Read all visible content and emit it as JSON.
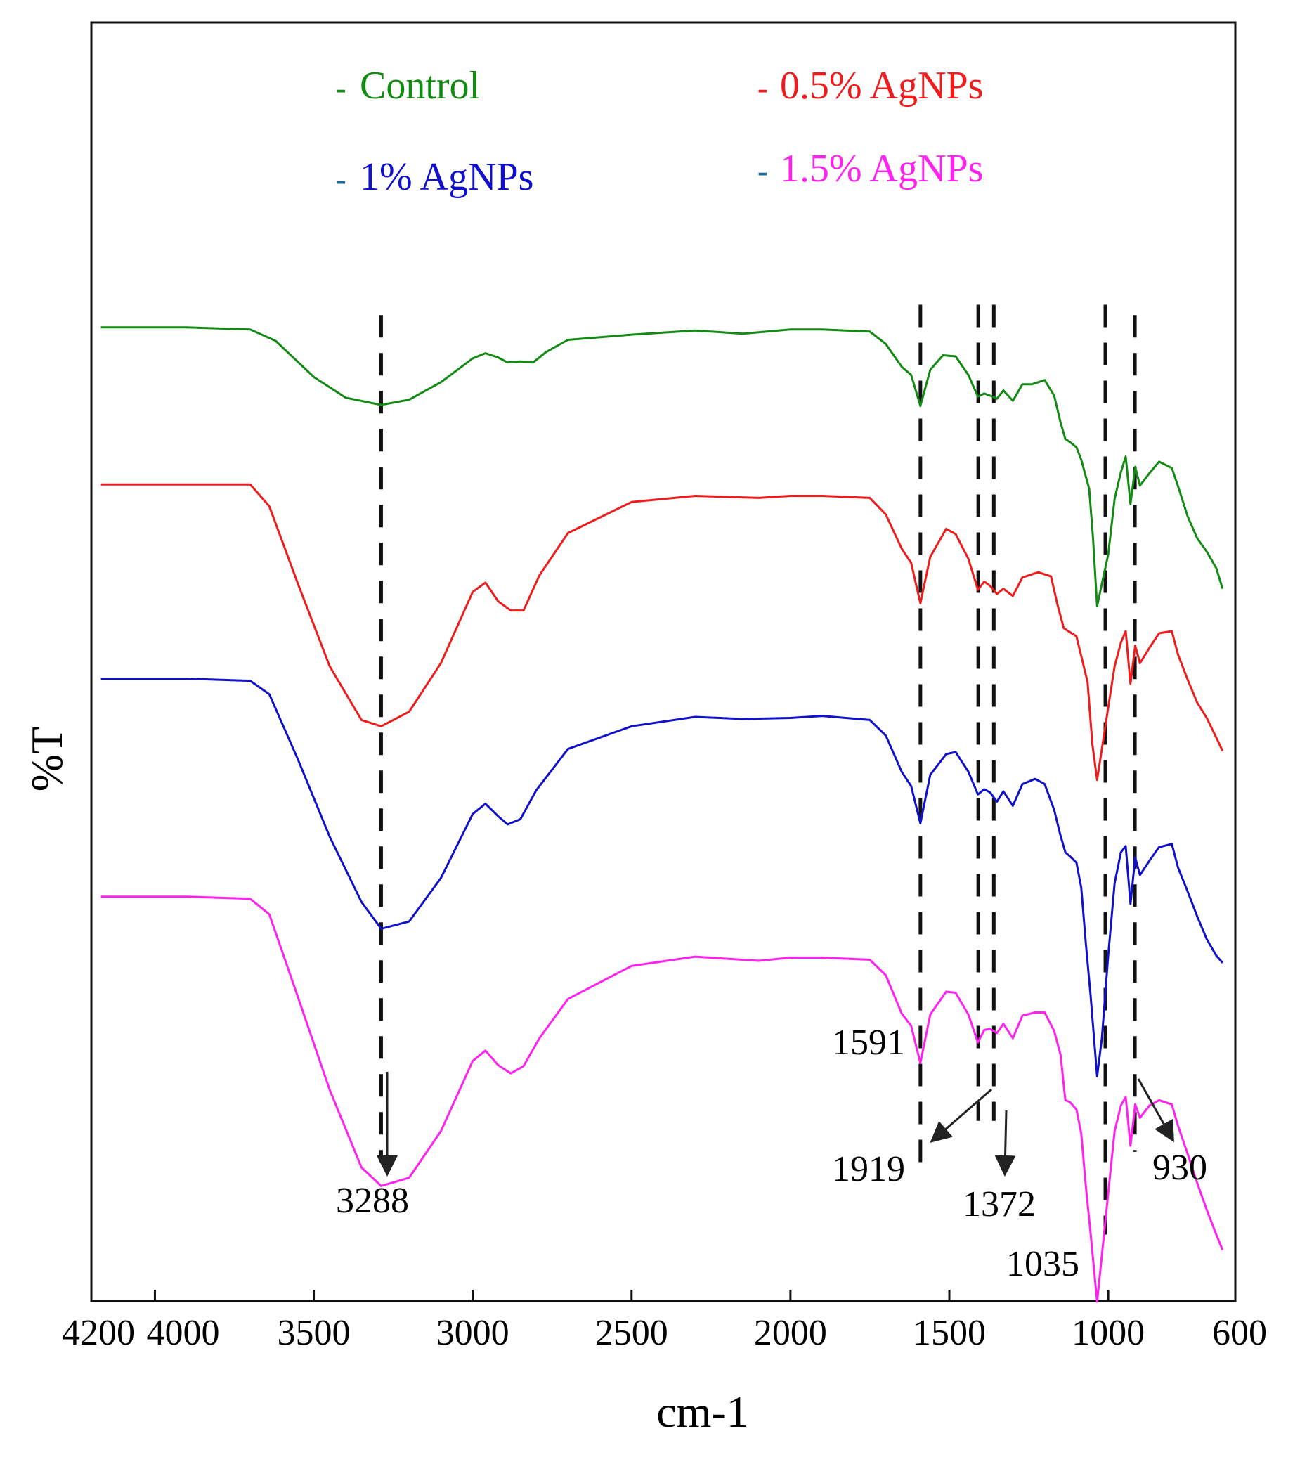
{
  "chart_data": {
    "type": "line",
    "title": "",
    "xlabel": "cm-1",
    "ylabel": "%T",
    "xlim": [
      4200,
      600
    ],
    "x_ticks": [
      {
        "value": 4200,
        "label": "4200"
      },
      {
        "value": 4000,
        "label": "4000"
      },
      {
        "value": 3500,
        "label": "3500"
      },
      {
        "value": 3000,
        "label": "3000"
      },
      {
        "value": 2500,
        "label": "2500"
      },
      {
        "value": 2000,
        "label": "2000"
      },
      {
        "value": 1500,
        "label": "1500"
      },
      {
        "value": 1000,
        "label": "1000"
      },
      {
        "value": 600,
        "label": "600"
      }
    ],
    "y_units": "relative %T (arbitrary offset, higher = more transmittance)",
    "ylim": [
      0,
      100
    ],
    "series": [
      {
        "name": "Control",
        "color": "#138a13",
        "points": [
          [
            4170,
            92.8
          ],
          [
            3900,
            92.8
          ],
          [
            3700,
            92.6
          ],
          [
            3620,
            91.5
          ],
          [
            3500,
            88
          ],
          [
            3400,
            86
          ],
          [
            3288,
            85.3
          ],
          [
            3200,
            85.8
          ],
          [
            3100,
            87.5
          ],
          [
            3000,
            89.8
          ],
          [
            2960,
            90.3
          ],
          [
            2920,
            89.9
          ],
          [
            2890,
            89.4
          ],
          [
            2850,
            89.5
          ],
          [
            2810,
            89.4
          ],
          [
            2770,
            90.4
          ],
          [
            2700,
            91.6
          ],
          [
            2500,
            92.1
          ],
          [
            2300,
            92.5
          ],
          [
            2150,
            92.2
          ],
          [
            2000,
            92.6
          ],
          [
            1900,
            92.6
          ],
          [
            1750,
            92.4
          ],
          [
            1700,
            91.2
          ],
          [
            1650,
            89
          ],
          [
            1620,
            88.2
          ],
          [
            1591,
            85.2
          ],
          [
            1560,
            88.7
          ],
          [
            1520,
            90.1
          ],
          [
            1480,
            90
          ],
          [
            1440,
            88.2
          ],
          [
            1410,
            86.1
          ],
          [
            1390,
            86.4
          ],
          [
            1372,
            86.2
          ],
          [
            1350,
            85.9
          ],
          [
            1330,
            86.7
          ],
          [
            1300,
            85.7
          ],
          [
            1270,
            87.3
          ],
          [
            1240,
            87.3
          ],
          [
            1200,
            87.7
          ],
          [
            1170,
            86.2
          ],
          [
            1150,
            83.6
          ],
          [
            1135,
            82
          ],
          [
            1120,
            81.7
          ],
          [
            1100,
            81.2
          ],
          [
            1085,
            80
          ],
          [
            1060,
            77.2
          ],
          [
            1048,
            72.5
          ],
          [
            1035,
            65.8
          ],
          [
            1020,
            68
          ],
          [
            1000,
            70.8
          ],
          [
            980,
            76.2
          ],
          [
            960,
            78.8
          ],
          [
            945,
            80.3
          ],
          [
            930,
            75.7
          ],
          [
            915,
            79.3
          ],
          [
            900,
            77.5
          ],
          [
            870,
            78.7
          ],
          [
            840,
            79.8
          ],
          [
            800,
            79.2
          ],
          [
            780,
            77.4
          ],
          [
            750,
            74.5
          ],
          [
            720,
            72.4
          ],
          [
            690,
            71.1
          ],
          [
            660,
            69.5
          ],
          [
            640,
            67.5
          ]
        ]
      },
      {
        "name": "0.5% AgNPs",
        "color": "#ee1c1c",
        "points": [
          [
            4170,
            77.6
          ],
          [
            3900,
            77.6
          ],
          [
            3700,
            77.6
          ],
          [
            3640,
            75.5
          ],
          [
            3550,
            68
          ],
          [
            3450,
            60
          ],
          [
            3350,
            54.8
          ],
          [
            3288,
            54.2
          ],
          [
            3200,
            55.6
          ],
          [
            3100,
            60.3
          ],
          [
            3000,
            67.2
          ],
          [
            2960,
            68.1
          ],
          [
            2920,
            66.3
          ],
          [
            2880,
            65.4
          ],
          [
            2840,
            65.4
          ],
          [
            2790,
            68.8
          ],
          [
            2700,
            72.9
          ],
          [
            2500,
            75.9
          ],
          [
            2300,
            76.5
          ],
          [
            2100,
            76.3
          ],
          [
            2000,
            76.5
          ],
          [
            1900,
            76.5
          ],
          [
            1750,
            76.3
          ],
          [
            1700,
            74.7
          ],
          [
            1650,
            71.4
          ],
          [
            1620,
            70
          ],
          [
            1591,
            66.1
          ],
          [
            1560,
            70.6
          ],
          [
            1510,
            73.3
          ],
          [
            1480,
            72.8
          ],
          [
            1440,
            70.4
          ],
          [
            1410,
            67.4
          ],
          [
            1390,
            68.2
          ],
          [
            1372,
            67.8
          ],
          [
            1350,
            67
          ],
          [
            1330,
            67.5
          ],
          [
            1300,
            66.8
          ],
          [
            1270,
            68.6
          ],
          [
            1220,
            69.1
          ],
          [
            1180,
            68.7
          ],
          [
            1160,
            66
          ],
          [
            1140,
            63.7
          ],
          [
            1120,
            63.3
          ],
          [
            1100,
            62.9
          ],
          [
            1085,
            61
          ],
          [
            1065,
            58.5
          ],
          [
            1050,
            52.5
          ],
          [
            1035,
            49
          ],
          [
            1020,
            52
          ],
          [
            1000,
            56
          ],
          [
            980,
            60
          ],
          [
            960,
            62.3
          ],
          [
            945,
            63.4
          ],
          [
            930,
            58.3
          ],
          [
            915,
            62
          ],
          [
            900,
            60.3
          ],
          [
            870,
            61.8
          ],
          [
            840,
            63.2
          ],
          [
            800,
            63.4
          ],
          [
            780,
            61.1
          ],
          [
            750,
            58.7
          ],
          [
            720,
            56.5
          ],
          [
            690,
            55
          ],
          [
            660,
            53.1
          ],
          [
            640,
            51.8
          ]
        ]
      },
      {
        "name": "1% AgNPs",
        "color": "#1111cc",
        "points": [
          [
            4170,
            58.8
          ],
          [
            3900,
            58.8
          ],
          [
            3700,
            58.6
          ],
          [
            3640,
            57.3
          ],
          [
            3550,
            51
          ],
          [
            3450,
            43.5
          ],
          [
            3350,
            37.2
          ],
          [
            3288,
            34.6
          ],
          [
            3200,
            35.3
          ],
          [
            3100,
            39.5
          ],
          [
            3000,
            45.7
          ],
          [
            2960,
            46.7
          ],
          [
            2920,
            45.5
          ],
          [
            2890,
            44.7
          ],
          [
            2850,
            45.2
          ],
          [
            2800,
            48
          ],
          [
            2700,
            52
          ],
          [
            2500,
            54.2
          ],
          [
            2300,
            55.1
          ],
          [
            2150,
            54.9
          ],
          [
            2000,
            55
          ],
          [
            1900,
            55.2
          ],
          [
            1750,
            54.8
          ],
          [
            1700,
            53.3
          ],
          [
            1650,
            49.8
          ],
          [
            1620,
            48.4
          ],
          [
            1591,
            44.8
          ],
          [
            1560,
            49.5
          ],
          [
            1510,
            51.5
          ],
          [
            1480,
            51.7
          ],
          [
            1440,
            49.8
          ],
          [
            1410,
            47.6
          ],
          [
            1390,
            48.1
          ],
          [
            1372,
            47.8
          ],
          [
            1350,
            46.9
          ],
          [
            1330,
            47.9
          ],
          [
            1300,
            46.5
          ],
          [
            1270,
            48.6
          ],
          [
            1230,
            49.1
          ],
          [
            1200,
            48.6
          ],
          [
            1170,
            46.1
          ],
          [
            1150,
            43.6
          ],
          [
            1135,
            42
          ],
          [
            1120,
            41.6
          ],
          [
            1100,
            41
          ],
          [
            1085,
            38.6
          ],
          [
            1070,
            33
          ],
          [
            1055,
            28
          ],
          [
            1035,
            20.3
          ],
          [
            1020,
            24
          ],
          [
            1000,
            32
          ],
          [
            980,
            39
          ],
          [
            960,
            42
          ],
          [
            945,
            42.6
          ],
          [
            930,
            37
          ],
          [
            915,
            41.5
          ],
          [
            900,
            39.8
          ],
          [
            870,
            41.2
          ],
          [
            840,
            42.5
          ],
          [
            800,
            42.8
          ],
          [
            780,
            40.5
          ],
          [
            750,
            38.2
          ],
          [
            720,
            35.8
          ],
          [
            690,
            33.6
          ],
          [
            660,
            32
          ],
          [
            640,
            31.3
          ]
        ]
      },
      {
        "name": "1.5% AgNPs",
        "color": "#ff22ee",
        "points": [
          [
            4170,
            37.7
          ],
          [
            3900,
            37.7
          ],
          [
            3700,
            37.5
          ],
          [
            3640,
            36
          ],
          [
            3550,
            28
          ],
          [
            3450,
            19
          ],
          [
            3350,
            11.5
          ],
          [
            3288,
            9.7
          ],
          [
            3200,
            10.5
          ],
          [
            3100,
            15
          ],
          [
            3000,
            21.8
          ],
          [
            2960,
            22.8
          ],
          [
            2920,
            21.4
          ],
          [
            2880,
            20.6
          ],
          [
            2840,
            21.3
          ],
          [
            2790,
            24
          ],
          [
            2700,
            27.8
          ],
          [
            2500,
            31
          ],
          [
            2300,
            31.9
          ],
          [
            2100,
            31.5
          ],
          [
            2000,
            31.8
          ],
          [
            1900,
            31.8
          ],
          [
            1750,
            31.6
          ],
          [
            1700,
            30.1
          ],
          [
            1650,
            26.4
          ],
          [
            1620,
            25.2
          ],
          [
            1591,
            21.6
          ],
          [
            1560,
            26.3
          ],
          [
            1510,
            28.5
          ],
          [
            1480,
            28.4
          ],
          [
            1440,
            26.3
          ],
          [
            1410,
            23.6
          ],
          [
            1390,
            24.8
          ],
          [
            1372,
            24.9
          ],
          [
            1350,
            24.5
          ],
          [
            1330,
            25.4
          ],
          [
            1300,
            24
          ],
          [
            1270,
            26.2
          ],
          [
            1230,
            26.5
          ],
          [
            1200,
            26.5
          ],
          [
            1170,
            24.7
          ],
          [
            1150,
            22.4
          ],
          [
            1135,
            18
          ],
          [
            1120,
            17.8
          ],
          [
            1100,
            17.1
          ],
          [
            1085,
            14.8
          ],
          [
            1070,
            9.5
          ],
          [
            1055,
            5
          ],
          [
            1035,
            -1.5
          ],
          [
            1020,
            3
          ],
          [
            1000,
            9
          ],
          [
            980,
            15
          ],
          [
            960,
            17.5
          ],
          [
            945,
            18.3
          ],
          [
            930,
            13.6
          ],
          [
            915,
            17.6
          ],
          [
            900,
            16.3
          ],
          [
            870,
            17.5
          ],
          [
            840,
            18
          ],
          [
            800,
            17.6
          ],
          [
            780,
            15.5
          ],
          [
            750,
            12.8
          ],
          [
            720,
            10
          ],
          [
            690,
            7.4
          ],
          [
            660,
            5
          ],
          [
            640,
            3.5
          ]
        ]
      }
    ],
    "legend": {
      "placement": "top",
      "entries": [
        {
          "label": "Control",
          "color": "#138a13",
          "marker_color": "#138a13"
        },
        {
          "label": "0.5% AgNPs",
          "color": "#ee1c1c",
          "marker_color": "#ee1c1c"
        },
        {
          "label": "1% AgNPs",
          "color": "#1111cc",
          "marker_color": "#1b6a9a"
        },
        {
          "label": "1.5% AgNPs",
          "color": "#ff22ee",
          "marker_color": "#1b6a9a"
        }
      ]
    },
    "reference_lines": [
      {
        "x": 3288,
        "y_top": 94,
        "y_bottom": 12
      },
      {
        "x": 1591,
        "y_top": 95,
        "y_bottom": 12
      },
      {
        "x": 1409,
        "y_top": 95,
        "y_bottom": 16
      },
      {
        "x": 1360,
        "y_top": 95,
        "y_bottom": 16
      },
      {
        "x": 1009,
        "y_top": 95,
        "y_bottom": 5
      },
      {
        "x": 916,
        "y_top": 94,
        "y_bottom": 13
      }
    ],
    "annotations": [
      {
        "label": "3288",
        "x": 3288
      },
      {
        "label": "1591",
        "x": 1591
      },
      {
        "label": "1919",
        "x": 1409
      },
      {
        "label": "1372",
        "x": 1360
      },
      {
        "label": "1035",
        "x": 1009
      },
      {
        "label": "930",
        "x": 916
      }
    ]
  }
}
